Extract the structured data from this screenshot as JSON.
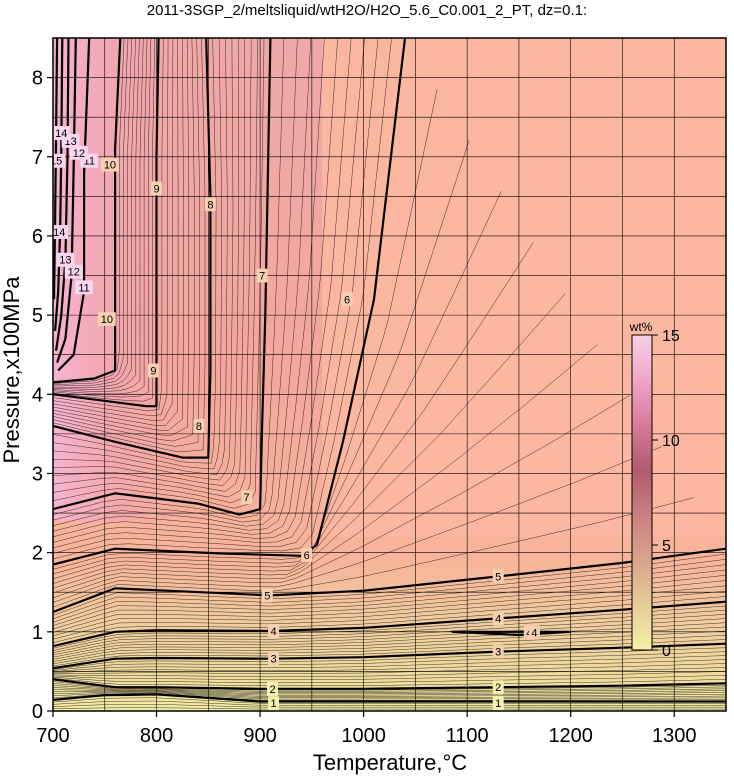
{
  "chart_data": {
    "type": "heatmap",
    "title": "2011-3SGP_2/meltsliquid/wtH2O/H2O_5.6_C0.001_2_PT, dz=0.1:",
    "xlabel": "Temperature,°C",
    "ylabel": "Pressure,x100MPa",
    "xlim": [
      700,
      1350
    ],
    "ylim": [
      0,
      8.5
    ],
    "x_ticks": [
      "700",
      "800",
      "900",
      "1000",
      "1100",
      "1200",
      "1300"
    ],
    "y_ticks": [
      "0",
      "1",
      "2",
      "3",
      "4",
      "5",
      "6",
      "7",
      "8"
    ],
    "grid": true,
    "colorbar": {
      "unit": "wt%",
      "range": [
        0,
        15
      ],
      "ticks": [
        "0",
        "5",
        "10",
        "15"
      ],
      "colors": [
        "#f2f2a8",
        "#e6cc99",
        "#d9a38c",
        "#c98080",
        "#b05a6e",
        "#d77a9c",
        "#f0a6c8",
        "#f5d1e8"
      ],
      "placement": "right-inside"
    },
    "series": [
      {
        "label": "1",
        "points": [
          [
            700,
            0.14
          ],
          [
            750,
            0.2
          ],
          [
            800,
            0.21
          ],
          [
            900,
            0.12
          ],
          [
            1000,
            0.12
          ],
          [
            1100,
            0.12
          ],
          [
            1200,
            0.12
          ],
          [
            1350,
            0.12
          ]
        ]
      },
      {
        "label": "2",
        "points": [
          [
            700,
            0.4
          ],
          [
            760,
            0.3
          ],
          [
            800,
            0.3
          ],
          [
            900,
            0.28
          ],
          [
            1000,
            0.28
          ],
          [
            1130,
            0.3
          ],
          [
            1250,
            0.32
          ],
          [
            1350,
            0.35
          ]
        ]
      },
      {
        "label": "3",
        "points": [
          [
            700,
            0.54
          ],
          [
            760,
            0.66
          ],
          [
            800,
            0.67
          ],
          [
            910,
            0.66
          ],
          [
            1000,
            0.68
          ],
          [
            1130,
            0.75
          ],
          [
            1250,
            0.8
          ],
          [
            1350,
            0.85
          ]
        ]
      },
      {
        "label": "4",
        "points": [
          [
            700,
            0.82
          ],
          [
            760,
            1.0
          ],
          [
            800,
            1.02
          ],
          [
            910,
            1.01
          ],
          [
            1000,
            1.05
          ],
          [
            1130,
            1.17
          ],
          [
            1250,
            1.28
          ],
          [
            1350,
            1.38
          ]
        ]
      },
      {
        "label": "4",
        "points": [
          [
            1085,
            1.0
          ],
          [
            1150,
            0.96
          ],
          [
            1200,
            1.0
          ],
          [
            1150,
            1.0
          ],
          [
            1085,
            1.0
          ]
        ]
      },
      {
        "label": "5",
        "points": [
          [
            700,
            1.25
          ],
          [
            760,
            1.55
          ],
          [
            810,
            1.52
          ],
          [
            910,
            1.46
          ],
          [
            1000,
            1.52
          ],
          [
            1130,
            1.7
          ],
          [
            1250,
            1.87
          ],
          [
            1350,
            2.05
          ]
        ]
      },
      {
        "label": "6",
        "points": [
          [
            700,
            1.85
          ],
          [
            760,
            2.05
          ],
          [
            860,
            1.99
          ],
          [
            940,
            1.96
          ],
          [
            955,
            2.1
          ],
          [
            980,
            3.4
          ],
          [
            1010,
            5.2
          ],
          [
            1040,
            8.5
          ]
        ]
      },
      {
        "label": "7",
        "points": [
          [
            700,
            2.55
          ],
          [
            760,
            2.75
          ],
          [
            840,
            2.62
          ],
          [
            880,
            2.48
          ],
          [
            900,
            2.55
          ],
          [
            902,
            3.6
          ],
          [
            905,
            5.0
          ],
          [
            910,
            8.5
          ]
        ]
      },
      {
        "label": "8",
        "points": [
          [
            700,
            3.6
          ],
          [
            760,
            3.4
          ],
          [
            825,
            3.2
          ],
          [
            850,
            3.2
          ],
          [
            852,
            4.3
          ],
          [
            852,
            6.5
          ],
          [
            848,
            8.5
          ]
        ]
      },
      {
        "label": "9",
        "points": [
          [
            700,
            4.0
          ],
          [
            760,
            3.9
          ],
          [
            790,
            3.85
          ],
          [
            800,
            3.85
          ],
          [
            800,
            5.5
          ],
          [
            800,
            7.0
          ],
          [
            802,
            8.5
          ]
        ]
      },
      {
        "label": "10",
        "points": [
          [
            700,
            4.15
          ],
          [
            740,
            4.2
          ],
          [
            760,
            4.3
          ],
          [
            760,
            5.5
          ],
          [
            760,
            7.1
          ],
          [
            765,
            8.5
          ]
        ]
      },
      {
        "label": "11",
        "points": [
          [
            705,
            4.3
          ],
          [
            720,
            4.5
          ],
          [
            730,
            5.3
          ],
          [
            730,
            6.8
          ],
          [
            735,
            8.5
          ]
        ]
      },
      {
        "label": "12",
        "points": [
          [
            704,
            4.4
          ],
          [
            712,
            4.7
          ],
          [
            718,
            5.5
          ],
          [
            720,
            6.9
          ],
          [
            722,
            8.5
          ]
        ]
      },
      {
        "label": "13",
        "points": [
          [
            703,
            4.55
          ],
          [
            708,
            5.0
          ],
          [
            712,
            5.7
          ],
          [
            714,
            7.0
          ],
          [
            715,
            8.5
          ]
        ]
      },
      {
        "label": "14",
        "points": [
          [
            702,
            4.8
          ],
          [
            705,
            5.3
          ],
          [
            707,
            6.1
          ],
          [
            708,
            7.1
          ],
          [
            709,
            8.5
          ]
        ]
      },
      {
        "label": "15",
        "points": [
          [
            701,
            5.2
          ],
          [
            702,
            6.2
          ],
          [
            703,
            7.3
          ],
          [
            704,
            8.5
          ]
        ]
      }
    ],
    "contour_labels": [
      {
        "text": "1",
        "x": 913,
        "y": 0.1
      },
      {
        "text": "1",
        "x": 1130,
        "y": 0.1
      },
      {
        "text": "2",
        "x": 912,
        "y": 0.28
      },
      {
        "text": "2",
        "x": 1130,
        "y": 0.3
      },
      {
        "text": "3",
        "x": 913,
        "y": 0.66
      },
      {
        "text": "3",
        "x": 1130,
        "y": 0.75
      },
      {
        "text": "4",
        "x": 913,
        "y": 1.01
      },
      {
        "text": "4",
        "x": 1130,
        "y": 1.17
      },
      {
        "text": "4",
        "x": 1160,
        "y": 0.99
      },
      {
        "text": "4",
        "x": 1165,
        "y": 0.99
      },
      {
        "text": "5",
        "x": 907,
        "y": 1.46
      },
      {
        "text": "5",
        "x": 1130,
        "y": 1.7
      },
      {
        "text": "6",
        "x": 945,
        "y": 1.97
      },
      {
        "text": "6",
        "x": 984,
        "y": 5.2
      },
      {
        "text": "7",
        "x": 887,
        "y": 2.7
      },
      {
        "text": "7",
        "x": 902,
        "y": 5.5
      },
      {
        "text": "8",
        "x": 841,
        "y": 3.6
      },
      {
        "text": "8",
        "x": 852,
        "y": 6.4
      },
      {
        "text": "9",
        "x": 797,
        "y": 4.3
      },
      {
        "text": "9",
        "x": 800,
        "y": 6.6
      },
      {
        "text": "10",
        "x": 752,
        "y": 4.95
      },
      {
        "text": "10",
        "x": 755,
        "y": 6.9
      },
      {
        "text": "11",
        "x": 730,
        "y": 5.35
      },
      {
        "text": "11",
        "x": 735,
        "y": 6.95
      },
      {
        "text": "12",
        "x": 720,
        "y": 5.55
      },
      {
        "text": "12",
        "x": 725,
        "y": 7.05
      },
      {
        "text": "13",
        "x": 712,
        "y": 5.7
      },
      {
        "text": "13",
        "x": 717,
        "y": 7.2
      },
      {
        "text": "14",
        "x": 706,
        "y": 6.05
      },
      {
        "text": "14",
        "x": 708,
        "y": 7.3
      },
      {
        "text": "15",
        "x": 703,
        "y": 6.95
      }
    ]
  }
}
